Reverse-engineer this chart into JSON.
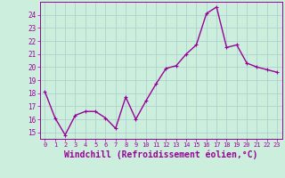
{
  "x": [
    0,
    1,
    2,
    3,
    4,
    5,
    6,
    7,
    8,
    9,
    10,
    11,
    12,
    13,
    14,
    15,
    16,
    17,
    18,
    19,
    20,
    21,
    22,
    23
  ],
  "y": [
    18.1,
    16.1,
    14.8,
    16.3,
    16.6,
    16.6,
    16.1,
    15.3,
    17.7,
    16.0,
    17.4,
    18.7,
    19.9,
    20.1,
    21.0,
    21.7,
    24.1,
    24.6,
    21.5,
    21.7,
    20.3,
    20.0,
    19.8,
    19.6
  ],
  "line_color": "#990099",
  "marker": "+",
  "marker_size": 3,
  "bg_color": "#cceedd",
  "grid_color": "#aacccc",
  "xlabel": "Windchill (Refroidissement éolien,°C)",
  "xlabel_fontsize": 7,
  "ylim": [
    14.5,
    25.0
  ],
  "yticks": [
    15,
    16,
    17,
    18,
    19,
    20,
    21,
    22,
    23,
    24
  ],
  "xticks": [
    0,
    1,
    2,
    3,
    4,
    5,
    6,
    7,
    8,
    9,
    10,
    11,
    12,
    13,
    14,
    15,
    16,
    17,
    18,
    19,
    20,
    21,
    22,
    23
  ],
  "tick_color": "#990099",
  "line_width": 1.0
}
